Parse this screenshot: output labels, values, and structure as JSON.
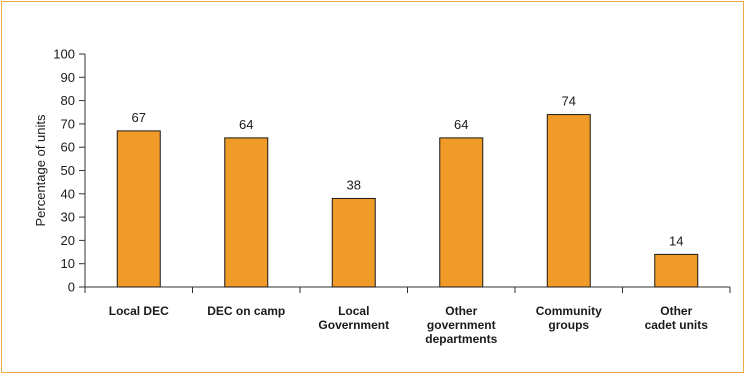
{
  "chart_data": {
    "type": "bar",
    "title": "",
    "xlabel": "",
    "ylabel": "Percentage of units",
    "ylim": [
      0,
      100
    ],
    "yticks": [
      0,
      10,
      20,
      30,
      40,
      50,
      60,
      70,
      80,
      90,
      100
    ],
    "categories": [
      "Local DEC",
      "DEC on camp",
      "Local Government",
      "Other government departments",
      "Community groups",
      "Other cadet units"
    ],
    "category_label_lines": [
      [
        "Local DEC"
      ],
      [
        "DEC on camp"
      ],
      [
        "Local",
        "Government"
      ],
      [
        "Other",
        "government",
        "departments"
      ],
      [
        "Community",
        "groups"
      ],
      [
        "Other",
        "cadet units"
      ]
    ],
    "values": [
      67,
      64,
      38,
      64,
      74,
      14
    ],
    "data_labels": [
      "67",
      "64",
      "38",
      "64",
      "74",
      "14"
    ],
    "bar_color": "#f09a28",
    "bar_stroke": "#1a1a1a",
    "frame_color": "#f0a848",
    "grid": false,
    "legend": "none"
  }
}
